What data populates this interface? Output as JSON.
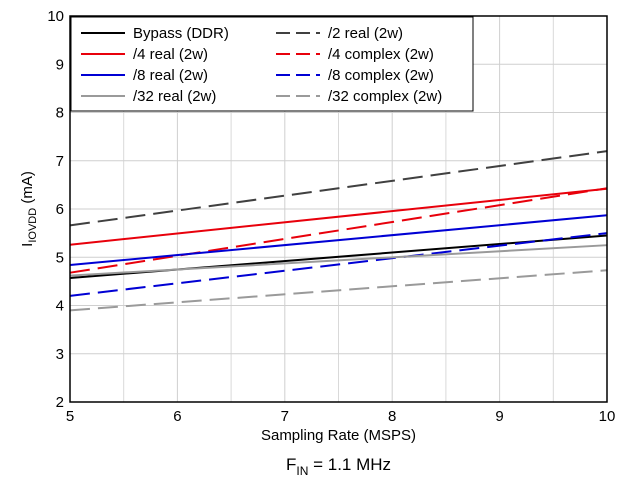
{
  "chart_data": {
    "type": "line",
    "title": "",
    "xlabel": "Sampling Rate (MSPS)",
    "ylabel": {
      "main": "I",
      "sub": "IOVDD",
      "unit": " (mA)"
    },
    "xlim": [
      5,
      10
    ],
    "ylim": [
      2,
      10
    ],
    "xticks": [
      5,
      6,
      7,
      8,
      9,
      10
    ],
    "yticks": [
      2,
      3,
      4,
      5,
      6,
      7,
      8,
      9,
      10
    ],
    "grid": true,
    "minor_grid_x": true,
    "legend": {
      "placement": "top-left",
      "columns": 2
    },
    "footnote": {
      "main": "F",
      "sub": "IN",
      "rest": " = 1.1 MHz"
    },
    "series": [
      {
        "name": "Bypass (DDR)",
        "color": "#000000",
        "dash": "solid",
        "x": [
          5,
          10
        ],
        "y": [
          4.57,
          5.45
        ]
      },
      {
        "name": "/2 real (2w)",
        "color": "#404040",
        "dash": "dashed",
        "x": [
          5,
          10
        ],
        "y": [
          5.66,
          7.2
        ]
      },
      {
        "name": "/4 real (2w)",
        "color": "#e8000b",
        "dash": "solid",
        "x": [
          5,
          10
        ],
        "y": [
          5.26,
          6.42
        ]
      },
      {
        "name": "/4 complex (2w)",
        "color": "#e8000b",
        "dash": "dashed",
        "x": [
          5,
          10
        ],
        "y": [
          4.68,
          6.43
        ]
      },
      {
        "name": "/8 real (2w)",
        "color": "#0000d4",
        "dash": "solid",
        "x": [
          5,
          10
        ],
        "y": [
          4.84,
          5.87
        ]
      },
      {
        "name": "/8 complex (2w)",
        "color": "#0000d4",
        "dash": "dashed",
        "x": [
          5,
          10
        ],
        "y": [
          4.2,
          5.5
        ]
      },
      {
        "name": "/32 real (2w)",
        "color": "#9a9a9a",
        "dash": "solid",
        "x": [
          5,
          10
        ],
        "y": [
          4.62,
          5.25
        ]
      },
      {
        "name": "/32 complex (2w)",
        "color": "#9a9a9a",
        "dash": "dashed",
        "x": [
          5,
          10
        ],
        "y": [
          3.9,
          4.73
        ]
      }
    ]
  }
}
